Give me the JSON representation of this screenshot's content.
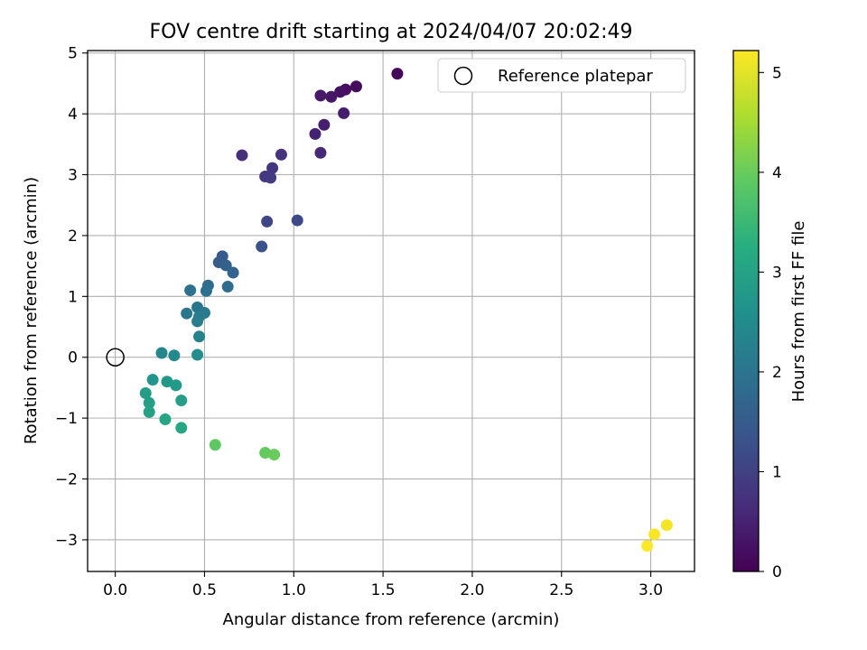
{
  "chart_data": {
    "type": "scatter",
    "title": "FOV centre drift starting at 2024/04/07 20:02:49",
    "xlabel": "Angular distance from reference (arcmin)",
    "ylabel": "Rotation from reference (arcmin)",
    "xlim": [
      -0.155,
      3.245
    ],
    "ylim": [
      -3.52,
      5.04
    ],
    "xticks": [
      0.0,
      0.5,
      1.0,
      1.5,
      2.0,
      2.5,
      3.0
    ],
    "xtick_labels": [
      "0.0",
      "0.5",
      "1.0",
      "1.5",
      "2.0",
      "2.5",
      "3.0"
    ],
    "yticks": [
      -3,
      -2,
      -1,
      0,
      1,
      2,
      3,
      4,
      5
    ],
    "ytick_labels": [
      "−3",
      "−2",
      "−1",
      "0",
      "1",
      "2",
      "3",
      "4",
      "5"
    ],
    "grid": true,
    "legend": {
      "position": "top-right",
      "entries": [
        "Reference platepar"
      ]
    },
    "reference_point": {
      "x": 0.0,
      "y": 0.0,
      "label": "Reference platepar",
      "marker": "open-circle"
    },
    "colorbar": {
      "label": "Hours from first FF file",
      "colormap": "viridis",
      "range": [
        0,
        5.22
      ],
      "ticks": [
        0,
        1,
        2,
        3,
        4,
        5
      ],
      "tick_labels": [
        "0",
        "1",
        "2",
        "3",
        "4",
        "5"
      ]
    },
    "points": [
      {
        "x": 1.58,
        "y": 4.66,
        "c": 0.05
      },
      {
        "x": 1.35,
        "y": 4.45,
        "c": 0.15
      },
      {
        "x": 1.29,
        "y": 4.4,
        "c": 0.2
      },
      {
        "x": 1.26,
        "y": 4.36,
        "c": 0.25
      },
      {
        "x": 1.21,
        "y": 4.28,
        "c": 0.3
      },
      {
        "x": 1.15,
        "y": 4.3,
        "c": 0.35
      },
      {
        "x": 1.28,
        "y": 4.01,
        "c": 0.4
      },
      {
        "x": 1.17,
        "y": 3.82,
        "c": 0.45
      },
      {
        "x": 1.12,
        "y": 3.67,
        "c": 0.5
      },
      {
        "x": 1.15,
        "y": 3.36,
        "c": 0.6
      },
      {
        "x": 0.71,
        "y": 3.32,
        "c": 0.7
      },
      {
        "x": 0.93,
        "y": 3.33,
        "c": 0.75
      },
      {
        "x": 0.88,
        "y": 3.11,
        "c": 0.8
      },
      {
        "x": 0.84,
        "y": 2.97,
        "c": 0.85
      },
      {
        "x": 0.87,
        "y": 2.95,
        "c": 0.9
      },
      {
        "x": 0.85,
        "y": 2.23,
        "c": 1.1
      },
      {
        "x": 1.02,
        "y": 2.25,
        "c": 1.15
      },
      {
        "x": 0.82,
        "y": 1.82,
        "c": 1.3
      },
      {
        "x": 0.6,
        "y": 1.66,
        "c": 1.5
      },
      {
        "x": 0.58,
        "y": 1.56,
        "c": 1.55
      },
      {
        "x": 0.62,
        "y": 1.51,
        "c": 1.6
      },
      {
        "x": 0.66,
        "y": 1.39,
        "c": 1.65
      },
      {
        "x": 0.52,
        "y": 1.18,
        "c": 1.8
      },
      {
        "x": 0.63,
        "y": 1.16,
        "c": 1.85
      },
      {
        "x": 0.51,
        "y": 1.09,
        "c": 1.9
      },
      {
        "x": 0.42,
        "y": 1.1,
        "c": 1.95
      },
      {
        "x": 0.46,
        "y": 0.82,
        "c": 2.0
      },
      {
        "x": 0.4,
        "y": 0.72,
        "c": 2.05
      },
      {
        "x": 0.5,
        "y": 0.73,
        "c": 2.1
      },
      {
        "x": 0.47,
        "y": 0.67,
        "c": 2.15
      },
      {
        "x": 0.46,
        "y": 0.59,
        "c": 2.2
      },
      {
        "x": 0.47,
        "y": 0.34,
        "c": 2.3
      },
      {
        "x": 0.26,
        "y": 0.07,
        "c": 2.4
      },
      {
        "x": 0.33,
        "y": 0.03,
        "c": 2.45
      },
      {
        "x": 0.46,
        "y": 0.04,
        "c": 2.5
      },
      {
        "x": 0.21,
        "y": -0.37,
        "c": 2.7
      },
      {
        "x": 0.29,
        "y": -0.4,
        "c": 2.75
      },
      {
        "x": 0.34,
        "y": -0.46,
        "c": 2.8
      },
      {
        "x": 0.17,
        "y": -0.59,
        "c": 2.85
      },
      {
        "x": 0.37,
        "y": -0.71,
        "c": 2.9
      },
      {
        "x": 0.19,
        "y": -0.75,
        "c": 2.95
      },
      {
        "x": 0.19,
        "y": -0.9,
        "c": 3.0
      },
      {
        "x": 0.28,
        "y": -1.02,
        "c": 3.05
      },
      {
        "x": 0.37,
        "y": -1.16,
        "c": 3.1
      },
      {
        "x": 0.56,
        "y": -1.44,
        "c": 3.9
      },
      {
        "x": 0.84,
        "y": -1.57,
        "c": 3.95
      },
      {
        "x": 0.89,
        "y": -1.6,
        "c": 4.0
      },
      {
        "x": 3.09,
        "y": -2.76,
        "c": 5.15
      },
      {
        "x": 3.02,
        "y": -2.91,
        "c": 5.18
      },
      {
        "x": 2.98,
        "y": -3.1,
        "c": 5.2
      }
    ]
  }
}
